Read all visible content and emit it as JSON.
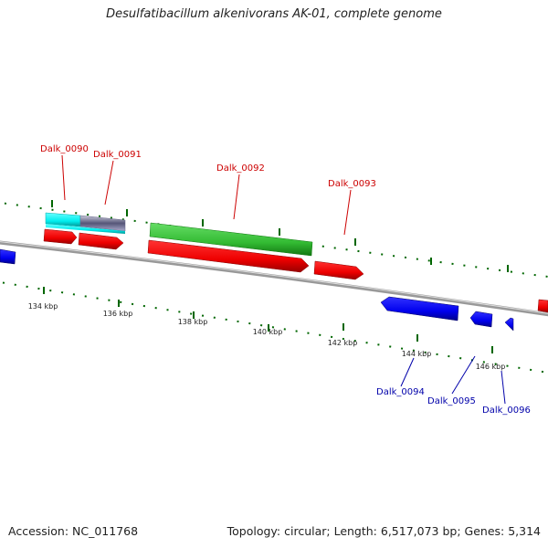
{
  "title": "Desulfatibacillum alkenivorans AK-01, complete genome",
  "footer": {
    "accession": "Accession: NC_011768",
    "summary": "Topology: circular; Length: 6,517,073 bp; Genes: 5,314"
  },
  "scale_labels": [
    "134 kbp",
    "136 kbp",
    "138 kbp",
    "140 kbp",
    "142 kbp",
    "144 kbp",
    "146 kbp"
  ],
  "genes_forward": [
    {
      "name": "Dalk_0090",
      "color": "#cc0000"
    },
    {
      "name": "Dalk_0091",
      "color": "#cc0000"
    },
    {
      "name": "Dalk_0092",
      "color": "#cc0000"
    },
    {
      "name": "Dalk_0093",
      "color": "#cc0000"
    }
  ],
  "genes_reverse": [
    {
      "name": "Dalk_0094",
      "color": "#0000aa"
    },
    {
      "name": "Dalk_0095",
      "color": "#0000aa"
    },
    {
      "name": "Dalk_0096",
      "color": "#0000aa"
    }
  ],
  "colors": {
    "forward_cds": "#ee0000",
    "reverse_cds": "#0000ee",
    "rna_green": "#33bb33",
    "feature_cyan": "#00ffff",
    "feature_grey": "#8888aa",
    "backbone": "#888888",
    "tick_green": "#006600"
  }
}
